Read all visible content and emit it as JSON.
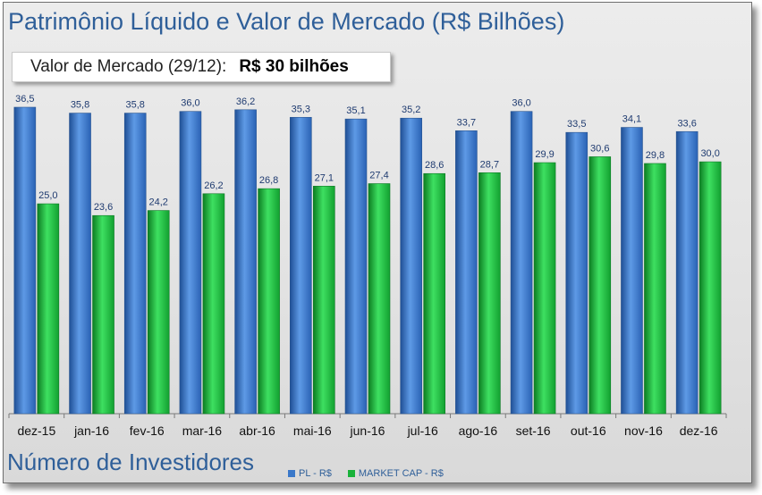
{
  "title": "Patrimônio Líquido e Valor de Mercado (R$ Bilhões)",
  "callout": {
    "label": "Valor de Mercado (29/12):",
    "value": "R$ 30 bilhões"
  },
  "subtitle": "Número de Investidores",
  "colors": {
    "pl": "#3a78c9",
    "market_cap": "#19b23a",
    "title": "#2f5f99",
    "value_label": "#1f3b70"
  },
  "chart_data": {
    "type": "bar",
    "title": "Patrimônio Líquido e Valor de Mercado (R$ Bilhões)",
    "categories": [
      "dez-15",
      "jan-16",
      "fev-16",
      "mar-16",
      "abr-16",
      "mai-16",
      "jun-16",
      "jul-16",
      "ago-16",
      "set-16",
      "out-16",
      "nov-16",
      "dez-16"
    ],
    "series": [
      {
        "name": "PL - R$",
        "values": [
          36.5,
          35.8,
          35.8,
          36.0,
          36.2,
          35.3,
          35.1,
          35.2,
          33.7,
          36.0,
          33.5,
          34.1,
          33.6
        ],
        "labels": [
          "36,5",
          "35,8",
          "35,8",
          "36,0",
          "36,2",
          "35,3",
          "35,1",
          "35,2",
          "33,7",
          "36,0",
          "33,5",
          "34,1",
          "33,6"
        ]
      },
      {
        "name": "MARKET CAP - R$",
        "values": [
          25.0,
          23.6,
          24.2,
          26.2,
          26.8,
          27.1,
          27.4,
          28.6,
          28.7,
          29.9,
          30.6,
          29.8,
          30.0
        ],
        "labels": [
          "25,0",
          "23,6",
          "24,2",
          "26,2",
          "26,8",
          "27,1",
          "27,4",
          "28,6",
          "28,7",
          "29,9",
          "30,6",
          "29,8",
          "30,0"
        ]
      }
    ],
    "ylim": [
      0,
      37
    ],
    "grid": false,
    "legend_position": "bottom"
  }
}
